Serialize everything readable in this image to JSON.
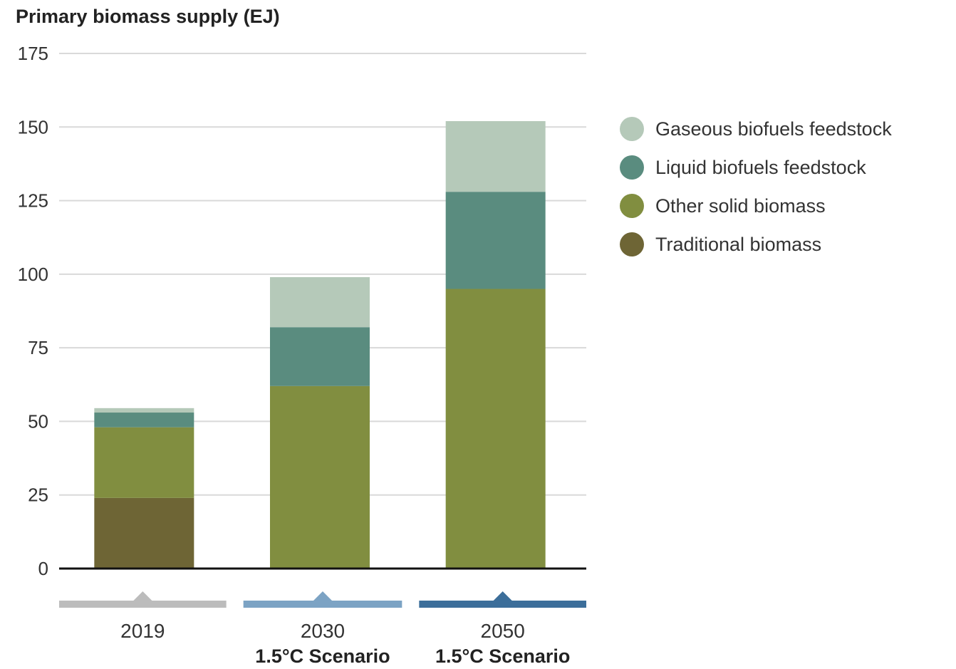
{
  "chart_data": {
    "type": "bar",
    "stacked": true,
    "ylabel": "Primary biomass supply (EJ)",
    "ylim": [
      0,
      175
    ],
    "yticks": [
      0,
      25,
      50,
      75,
      100,
      125,
      150,
      175
    ],
    "grid": true,
    "legend_position": "right",
    "categories": [
      {
        "year": "2019",
        "subtitle": "",
        "marker_color": "#bcbcbc"
      },
      {
        "year": "2030",
        "subtitle": "1.5°C Scenario",
        "marker_color": "#7ca3c4"
      },
      {
        "year": "2050",
        "subtitle": "1.5°C Scenario",
        "marker_color": "#3c6e9a"
      }
    ],
    "series": [
      {
        "name": "Traditional biomass",
        "color": "#6e6535",
        "values": [
          24,
          0,
          0
        ]
      },
      {
        "name": "Other solid biomass",
        "color": "#818e40",
        "values": [
          24,
          62,
          95
        ]
      },
      {
        "name": "Liquid biofuels feedstock",
        "color": "#5a8c7f",
        "values": [
          5,
          20,
          33
        ]
      },
      {
        "name": "Gaseous biofuels feedstock",
        "color": "#b5c9b9",
        "values": [
          1.5,
          17,
          24
        ]
      }
    ],
    "legend_order": [
      3,
      2,
      1,
      0
    ]
  }
}
